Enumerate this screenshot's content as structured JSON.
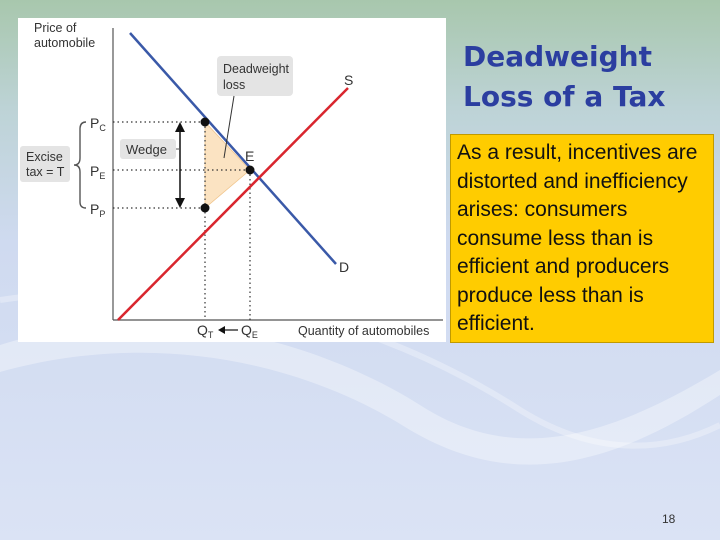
{
  "slide": {
    "title": "Deadweight Loss of a Tax",
    "body": "As a result, incentives are distorted and inefficiency arises: consumers consume less than is efficient and producers produce less than is efficient.",
    "page_number": "18"
  },
  "figure": {
    "y_axis_label": [
      "Price of",
      "automobile"
    ],
    "x_axis_label": "Quantity of automobiles",
    "supply_label": "S",
    "demand_label": "D",
    "equilibrium_label": "E",
    "deadweight_loss_label": [
      "Deadweight",
      "loss"
    ],
    "wedge_label": "Wedge",
    "excise_tax_label": [
      "Excise",
      "tax = T"
    ],
    "price_ticks": {
      "pc": {
        "main": "P",
        "sub": "C"
      },
      "pe": {
        "main": "P",
        "sub": "E"
      },
      "pp": {
        "main": "P",
        "sub": "P"
      }
    },
    "quantity_ticks": {
      "qt": {
        "main": "Q",
        "sub": "T"
      },
      "qe": {
        "main": "Q",
        "sub": "E"
      }
    }
  },
  "colors": {
    "title": "#2b3ea0",
    "textbox_bg": "#ffcc00",
    "supply_curve": "#d9262e",
    "demand_curve": "#3a59a8",
    "deadweight_fill": "#fbe3c2"
  }
}
